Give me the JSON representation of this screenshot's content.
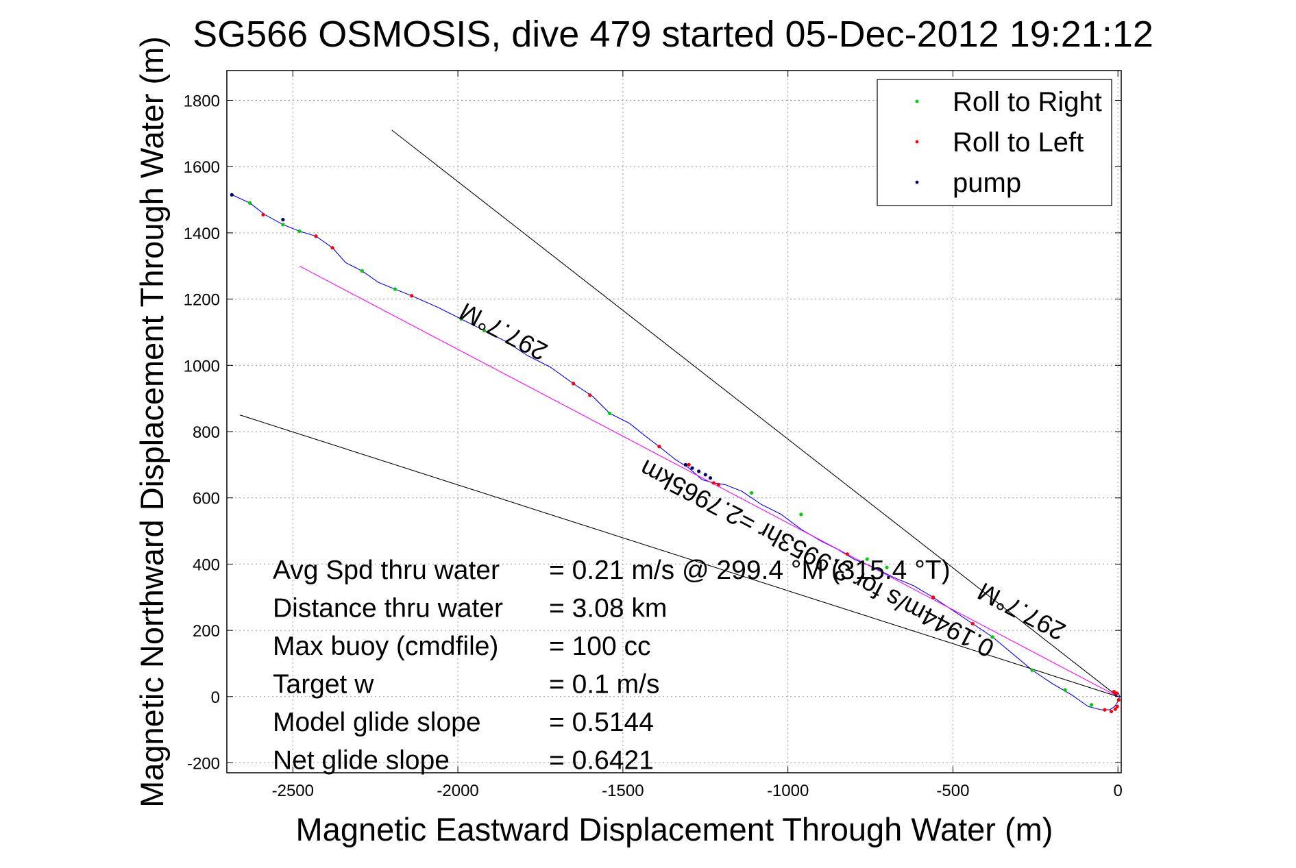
{
  "chart_data": {
    "type": "line",
    "title": "SG566 OSMOSIS, dive 479 started 05-Dec-2012 19:21:12",
    "xlabel": "Magnetic Eastward Displacement Through Water (m)",
    "ylabel": "Magnetic Northward Displacement Through Water (m)",
    "xlim": [
      -2700,
      10
    ],
    "ylim": [
      -230,
      1890
    ],
    "xticks": [
      -2500,
      -2000,
      -1500,
      -1000,
      -500,
      0
    ],
    "yticks": [
      -200,
      0,
      200,
      400,
      600,
      800,
      1000,
      1200,
      1400,
      1600,
      1800
    ],
    "grid": true,
    "legend_position": "top-right",
    "legend": [
      {
        "label": "Roll to Right",
        "color": "#00cc00"
      },
      {
        "label": "Roll to Left",
        "color": "#ff0000"
      },
      {
        "label": "pump",
        "color": "#000066"
      }
    ],
    "colors": {
      "track": "#0000ff",
      "heading_line": "#ff00ff",
      "cone_lines": "#000000"
    },
    "series": [
      {
        "name": "",
        "color": "#0000ff",
        "x": [
          -2685,
          -2630,
          -2585,
          -2530,
          -2480,
          -2430,
          -2380,
          -2340,
          -2290,
          -2240,
          -2190,
          -2140,
          -2060,
          -1990,
          -1920,
          -1850,
          -1790,
          -1720,
          -1650,
          -1590,
          -1540,
          -1480,
          -1430,
          -1390,
          -1340,
          -1300,
          -1260,
          -1225,
          -1190,
          -1140,
          -1080,
          -1020,
          -960,
          -900,
          -850,
          -800,
          -740,
          -680,
          -620,
          -560,
          -500,
          -440,
          -380,
          -320,
          -260,
          -200,
          -140,
          -90,
          -50,
          -25,
          -10,
          0,
          5,
          2,
          -6
        ],
        "y": [
          1515,
          1490,
          1455,
          1425,
          1405,
          1390,
          1355,
          1310,
          1285,
          1250,
          1230,
          1210,
          1175,
          1140,
          1105,
          1070,
          1030,
          995,
          945,
          905,
          855,
          825,
          785,
          755,
          715,
          690,
          655,
          645,
          640,
          620,
          580,
          550,
          505,
          470,
          445,
          415,
          390,
          360,
          335,
          300,
          260,
          220,
          180,
          130,
          80,
          40,
          5,
          -30,
          -40,
          -40,
          -30,
          -15,
          0,
          10,
          15
        ]
      },
      {
        "name": "",
        "color": "#ff00ff",
        "x": [
          -2480,
          0
        ],
        "y": [
          1300,
          0
        ]
      },
      {
        "name": "",
        "color": "#000000",
        "x": [
          -2200,
          0
        ],
        "y": [
          1710,
          0
        ]
      },
      {
        "name": "",
        "color": "#000000",
        "x": [
          -2660,
          0
        ],
        "y": [
          850,
          0
        ]
      },
      {
        "name": "Roll to Right",
        "color": "#00cc00",
        "x": [
          -2630,
          -2530,
          -2480,
          -2290,
          -2190,
          -1990,
          -1920,
          -1850,
          -1540,
          -1110,
          -960,
          -760,
          -700,
          -380,
          -260,
          -160,
          -80
        ],
        "y": [
          1490,
          1425,
          1405,
          1285,
          1230,
          1140,
          1105,
          1070,
          855,
          615,
          550,
          415,
          390,
          180,
          80,
          20,
          -25
        ]
      },
      {
        "name": "Roll to Left",
        "color": "#ff0000",
        "x": [
          -2590,
          -2430,
          -2380,
          -2140,
          -1650,
          -1600,
          -1390,
          -1225,
          -1210,
          -1300,
          -820,
          -560,
          -440,
          -40,
          -20,
          -8,
          -2,
          2,
          -4,
          -12
        ],
        "y": [
          1455,
          1390,
          1355,
          1210,
          945,
          910,
          755,
          645,
          640,
          700,
          430,
          300,
          220,
          -40,
          -45,
          -38,
          -30,
          -10,
          10,
          15
        ]
      },
      {
        "name": "pump",
        "color": "#000066",
        "x": [
          -2685,
          -2530,
          -1310,
          -1290,
          -1270,
          -1250,
          -1235
        ],
        "y": [
          1515,
          1440,
          700,
          690,
          680,
          670,
          660
        ]
      }
    ],
    "stats": [
      {
        "label": "Avg Spd thru water",
        "value": "=  0.21 m/s @ 299.4 °M (315.4 °T)"
      },
      {
        "label": "Distance thru water",
        "value": "=  3.08 km"
      },
      {
        "label": "Max buoy (cmdfile)",
        "value": "= 100 cc"
      },
      {
        "label": "Target w",
        "value": "= 0.1 m/s"
      },
      {
        "label": "Model glide slope",
        "value": "= 0.5144"
      },
      {
        "label": "Net glide slope",
        "value": "= 0.6421"
      }
    ],
    "annotations": [
      {
        "text": "297.7°M",
        "x": -1850,
        "y": 1125,
        "rotation": 207.7
      },
      {
        "text": "0.1944m/s for 3.9953hr =2.7965km",
        "x": -900,
        "y": 440,
        "rotation": 207.7
      },
      {
        "text": "297.7°M",
        "x": -280,
        "y": 280,
        "rotation": 207.7
      }
    ]
  }
}
